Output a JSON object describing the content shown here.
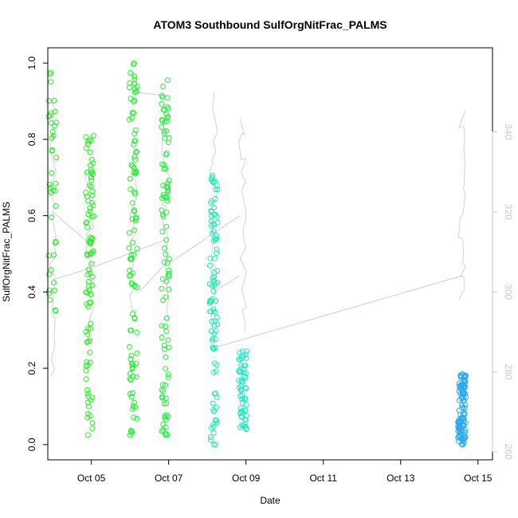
{
  "chart_data": {
    "type": "scatter",
    "title": "ATOM3 Southbound SulfOrgNitFrac_PALMS",
    "xlabel": "Date",
    "ylabel": "SulfOrgNitFrac_PALMS",
    "xlim": [
      "2016-10-03T21:00",
      "2016-10-15T09:00"
    ],
    "ylim": [
      -0.04,
      1.04
    ],
    "y2lim": [
      258,
      361
    ],
    "x_ticks": [
      {
        "date": "2016-10-05",
        "label": "Oct 05"
      },
      {
        "date": "2016-10-07",
        "label": "Oct 07"
      },
      {
        "date": "2016-10-09",
        "label": "Oct 09"
      },
      {
        "date": "2016-10-11",
        "label": "Oct 11"
      },
      {
        "date": "2016-10-13",
        "label": "Oct 13"
      },
      {
        "date": "2016-10-15",
        "label": "Oct 15"
      }
    ],
    "y_ticks": [
      "0.0",
      "0.2",
      "0.4",
      "0.6",
      "0.8",
      "1.0"
    ],
    "y2_ticks": [
      "260",
      "280",
      "300",
      "320",
      "340"
    ],
    "grid": false,
    "marker": "open circle",
    "point_color_note": "points colored by time: green early to blue late",
    "flights": [
      {
        "x": "2016-10-04T00:00",
        "y_min": 0.35,
        "y_max": 0.975,
        "n": 40,
        "color": "#22ee22"
      },
      {
        "x": "2016-10-04T23:00",
        "y_min": 0.025,
        "y_max": 0.81,
        "n": 95,
        "color": "#26ee1f"
      },
      {
        "x": "2016-10-06T02:00",
        "y_min": 0.025,
        "y_max": 1.0,
        "n": 100,
        "color": "#1ef02a"
      },
      {
        "x": "2016-10-06T22:00",
        "y_min": 0.025,
        "y_max": 0.955,
        "n": 100,
        "color": "#20ef3c"
      },
      {
        "x": "2016-10-08T04:00",
        "y_min": 0.0,
        "y_max": 0.705,
        "n": 95,
        "color": "#20e8b0"
      },
      {
        "x": "2016-10-08T22:00",
        "y_min": 0.04,
        "y_max": 0.245,
        "n": 60,
        "color": "#20e8c0"
      },
      {
        "x": "2016-10-14T14:00",
        "y_min": 0.0,
        "y_max": 0.185,
        "n": 110,
        "color": "#2aa8f0"
      }
    ],
    "series2": {
      "name": "",
      "color": "#c8c8c8",
      "segments": [
        {
          "x": [
            "2016-10-04T00:00",
            "2016-10-04T23:00"
          ],
          "y": [
            320,
            312
          ]
        },
        {
          "x": [
            "2016-10-04T00:00",
            "2016-10-05T00:00"
          ],
          "y": [
            303,
            306
          ]
        },
        {
          "x": [
            "2016-10-06T02:00",
            "2016-10-06T22:00"
          ],
          "y": [
            350,
            349
          ]
        },
        {
          "x": [
            "2016-10-05T00:00",
            "2016-10-06T22:00"
          ],
          "y": [
            306,
            313
          ]
        },
        {
          "x": [
            "2016-10-06T06:00",
            "2016-10-06T22:00"
          ],
          "y": [
            300,
            307
          ]
        },
        {
          "x": [
            "2016-10-07T00:00",
            "2016-10-08T20:00"
          ],
          "y": [
            307,
            319
          ]
        },
        {
          "x": [
            "2016-10-08T04:00",
            "2016-10-08T20:00"
          ],
          "y": [
            300,
            304
          ]
        },
        {
          "x": [
            "2016-10-08T04:00",
            "2016-10-14T14:00"
          ],
          "y": [
            286,
            304
          ]
        }
      ]
    }
  }
}
